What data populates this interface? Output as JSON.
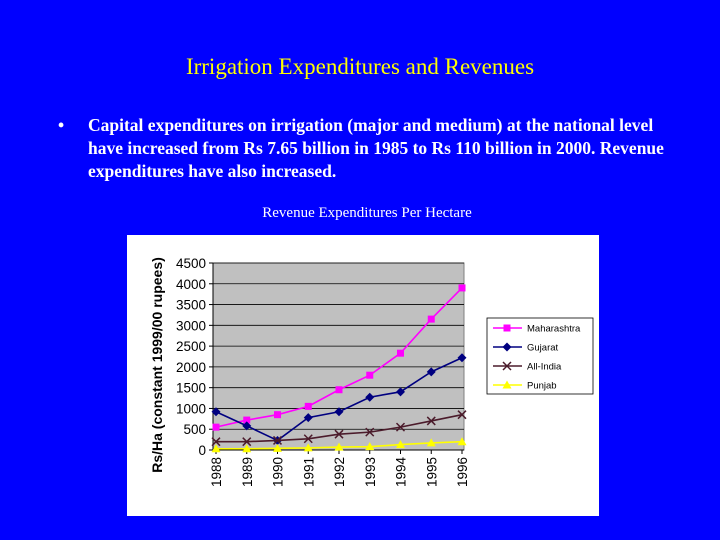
{
  "slide": {
    "title": "Irrigation Expenditures and Revenues",
    "bullet": "•",
    "text": "Capital expenditures on irrigation (major and medium) at the national level have increased from Rs 7.65 billion in 1985 to Rs 110 billion in 2000. Revenue expenditures have also increased.",
    "chart_caption": "Revenue Expenditures Per Hectare"
  },
  "colors": {
    "background": "#0000ff",
    "title": "#ffff00",
    "text": "#ffffff",
    "plot_area": "#c0c0c0"
  },
  "chart_data": {
    "type": "line",
    "title": "",
    "xlabel": "",
    "ylabel": "Rs/Ha (constant 1999/00 rupees)",
    "x": [
      "1988",
      "1989",
      "1990",
      "1991",
      "1992",
      "1993",
      "1994",
      "1995",
      "1996"
    ],
    "ylim": [
      0,
      4500
    ],
    "yticks": [
      0,
      500,
      1000,
      1500,
      2000,
      2500,
      3000,
      3500,
      4000,
      4500
    ],
    "grid": true,
    "legend_position": "right",
    "series": [
      {
        "name": "Maharashtra",
        "color": "#ff00ff",
        "marker": "square",
        "values": [
          550,
          720,
          850,
          1050,
          1450,
          1800,
          2330,
          3150,
          3900
        ]
      },
      {
        "name": "Gujarat",
        "color": "#000080",
        "marker": "diamond",
        "values": [
          920,
          580,
          230,
          780,
          920,
          1270,
          1400,
          1880,
          2220
        ]
      },
      {
        "name": "All-India",
        "color": "#4b1b2b",
        "marker": "x",
        "values": [
          200,
          200,
          230,
          270,
          380,
          430,
          550,
          700,
          850
        ]
      },
      {
        "name": "Punjab",
        "color": "#ffff00",
        "marker": "triangle",
        "values": [
          30,
          30,
          40,
          50,
          70,
          80,
          130,
          170,
          200
        ]
      }
    ]
  }
}
